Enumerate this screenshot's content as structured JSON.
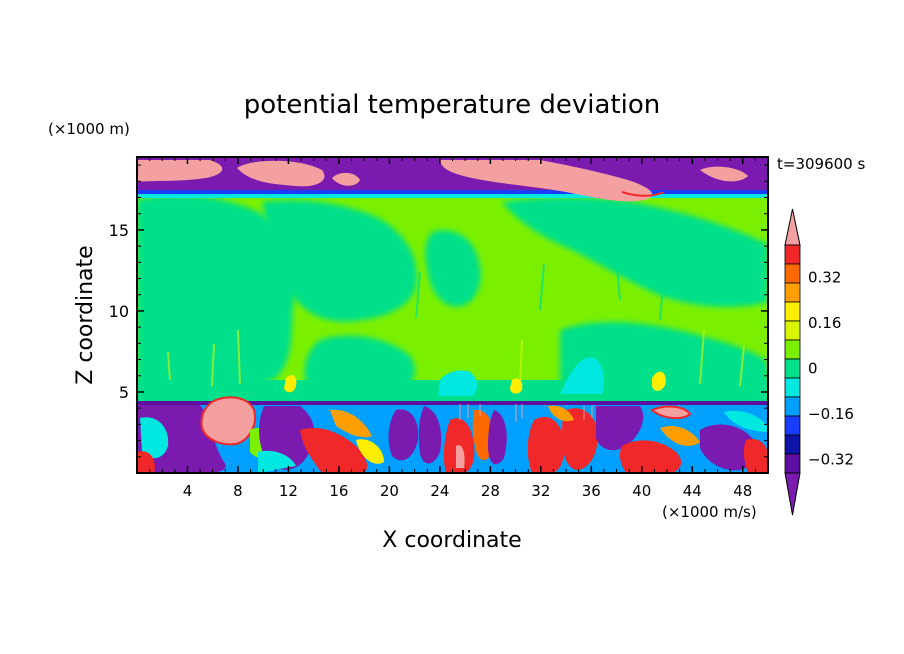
{
  "chart_data": {
    "type": "heatmap",
    "title": "potential temperature deviation",
    "xlabel": "X coordinate",
    "ylabel": "Z coordinate",
    "x_unit": "(×1000 m/s)",
    "y_unit": "(×1000 m)",
    "time_label": "t=309600 s",
    "xlim": [
      0,
      50
    ],
    "ylim": [
      0,
      19.5
    ],
    "x_ticks": [
      4,
      8,
      12,
      16,
      20,
      24,
      28,
      32,
      36,
      40,
      44,
      48
    ],
    "y_ticks": [
      5,
      10,
      15
    ],
    "colorbar": {
      "levels": [
        -0.4,
        -0.32,
        -0.24,
        -0.16,
        -0.08,
        0,
        0.08,
        0.16,
        0.24,
        0.32,
        0.4
      ],
      "tick_labels": [
        "0.32",
        "0.16",
        "0",
        "−0.16",
        "−0.32"
      ],
      "tick_values": [
        0.32,
        0.16,
        0,
        -0.16,
        -0.32
      ],
      "colors_top_to_bottom": [
        "#f4a0a0",
        "#f0282a",
        "#ff6a00",
        "#ff9e00",
        "#ffee00",
        "#d8f600",
        "#7af000",
        "#00e08a",
        "#00e8e0",
        "#00a0ff",
        "#1a3cff",
        "#0e14a8",
        "#5c0fa0",
        "#7a1aae"
      ]
    },
    "layers": [
      {
        "name": "upper band",
        "z_range": [
          17.5,
          19.5
        ],
        "dominant": "purple with pink patches"
      },
      {
        "name": "middle region",
        "z_range": [
          4.6,
          17.5
        ],
        "dominant": "green / light green"
      },
      {
        "name": "lower band",
        "z_range": [
          0,
          4.6
        ],
        "dominant": "mixed red, blue, cyan, purple"
      }
    ]
  }
}
